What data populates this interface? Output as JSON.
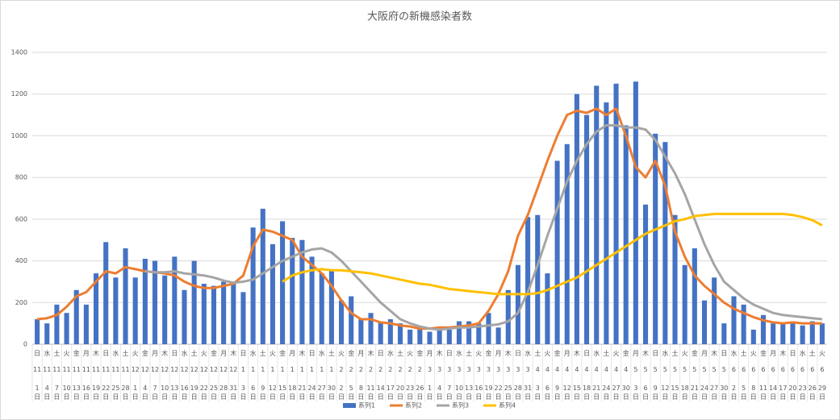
{
  "chart_data": {
    "type": "bar_line",
    "title": "大阪府の新機感染者数",
    "categories": [
      "日 11 1 日",
      "水 11 4 日",
      "土 11 7 日",
      "火 11 10 日",
      "金 11 13 日",
      "月 11 16 日",
      "木 11 19 日",
      "日 11 22 日",
      "水 11 25 日",
      "土 11 28 日",
      "火 12 1 日",
      "金 12 4 日",
      "月 12 7 日",
      "木 12 10 日",
      "日 12 13 日",
      "水 12 16 日",
      "土 12 19 日",
      "火 12 22 日",
      "金 12 25 日",
      "月 12 28 日",
      "木 12 31 日",
      "日 1 3 日",
      "水 1 6 日",
      "土 1 9 日",
      "火 1 12 日",
      "金 1 15 日",
      "月 1 18 日",
      "木 1 21 日",
      "日 1 24 日",
      "水 1 27 日",
      "土 1 30 日",
      "火 2 2 日",
      "金 2 5 日",
      "月 2 8 日",
      "木 2 11 日",
      "日 2 14 日",
      "水 2 17 日",
      "土 2 20 日",
      "火 2 23 日",
      "金 2 26 日",
      "月 3 1 日",
      "木 3 4 日",
      "日 3 7 日",
      "水 3 10 日",
      "土 3 13 日",
      "火 3 16 日",
      "金 3 19 日",
      "月 3 22 日",
      "木 3 25 日",
      "日 3 28 日",
      "水 3 31 日",
      "土 4 3 日",
      "火 4 6 日",
      "金 4 9 日",
      "月 4 12 日",
      "木 4 15 日",
      "日 4 18 日",
      "水 4 21 日",
      "土 4 24 日",
      "火 4 27 日",
      "金 4 30 日",
      "月 5 3 日",
      "木 5 6 日",
      "日 5 9 日",
      "水 5 12 日",
      "土 5 15 日",
      "火 5 18 日",
      "金 5 21 日",
      "月 5 24 日",
      "木 5 27 日",
      "日 5 30 日",
      "水 6 2 日",
      "土 6 5 日",
      "火 6 8 日",
      "金 6 11 日",
      "月 6 14 日",
      "木 6 17 日",
      "日 6 20 日",
      "水 6 23 日",
      "土 6 26 日",
      "火 6 29 日"
    ],
    "series": [
      {
        "name": "系列1",
        "kind": "bar",
        "color": "#4472c4",
        "values": [
          120,
          100,
          190,
          150,
          260,
          190,
          340,
          490,
          320,
          460,
          320,
          410,
          400,
          330,
          420,
          260,
          400,
          290,
          280,
          300,
          300,
          250,
          560,
          650,
          480,
          590,
          510,
          500,
          420,
          340,
          350,
          210,
          230,
          120,
          150,
          110,
          120,
          100,
          70,
          80,
          60,
          80,
          70,
          110,
          110,
          100,
          150,
          80,
          260,
          380,
          610,
          620,
          340,
          880,
          960,
          1200,
          1100,
          1240,
          1160,
          1250,
          1050,
          1260,
          670,
          1010,
          970,
          620,
          380,
          460,
          210,
          320,
          100,
          230,
          190,
          70,
          140,
          100,
          100,
          110,
          90,
          110,
          100
        ]
      },
      {
        "name": "系列2",
        "kind": "line",
        "color": "#ed7d31",
        "values": [
          120,
          125,
          140,
          180,
          230,
          250,
          300,
          350,
          340,
          370,
          360,
          350,
          345,
          340,
          330,
          300,
          280,
          270,
          270,
          280,
          290,
          330,
          470,
          550,
          540,
          520,
          500,
          420,
          380,
          340,
          280,
          210,
          150,
          120,
          120,
          105,
          100,
          90,
          85,
          75,
          75,
          80,
          80,
          85,
          90,
          100,
          160,
          240,
          350,
          520,
          620,
          750,
          880,
          1000,
          1100,
          1120,
          1110,
          1130,
          1100,
          1130,
          1000,
          850,
          800,
          880,
          760,
          540,
          420,
          330,
          280,
          240,
          200,
          170,
          150,
          130,
          115,
          105,
          100,
          105,
          100,
          100,
          100
        ]
      },
      {
        "name": "系列3",
        "kind": "line",
        "color": "#a5a5a5",
        "values": [
          null,
          null,
          null,
          null,
          null,
          null,
          null,
          null,
          null,
          null,
          null,
          350,
          345,
          345,
          350,
          340,
          335,
          330,
          320,
          305,
          295,
          300,
          310,
          340,
          370,
          400,
          420,
          440,
          455,
          460,
          440,
          400,
          350,
          300,
          250,
          200,
          160,
          120,
          100,
          85,
          75,
          70,
          75,
          80,
          80,
          85,
          90,
          95,
          110,
          150,
          250,
          380,
          520,
          650,
          780,
          880,
          960,
          1020,
          1050,
          1050,
          1040,
          1040,
          1030,
          980,
          900,
          820,
          720,
          600,
          480,
          380,
          300,
          260,
          220,
          190,
          170,
          150,
          140,
          135,
          130,
          125,
          120
        ]
      },
      {
        "name": "系列4",
        "kind": "line",
        "color": "#ffc000",
        "values": [
          null,
          null,
          null,
          null,
          null,
          null,
          null,
          null,
          null,
          null,
          null,
          null,
          null,
          null,
          null,
          null,
          null,
          null,
          null,
          null,
          null,
          null,
          null,
          null,
          null,
          300,
          330,
          345,
          355,
          360,
          355,
          355,
          350,
          345,
          340,
          330,
          320,
          310,
          300,
          290,
          285,
          275,
          265,
          260,
          255,
          250,
          245,
          240,
          240,
          240,
          240,
          245,
          260,
          280,
          300,
          320,
          350,
          380,
          410,
          440,
          470,
          500,
          530,
          550,
          570,
          590,
          600,
          615,
          620,
          625,
          625,
          625,
          625,
          625,
          625,
          625,
          625,
          620,
          610,
          595,
          570
        ]
      }
    ],
    "ylim": [
      0,
      1400
    ],
    "yticks": [
      0,
      200,
      400,
      600,
      800,
      1000,
      1200,
      1400
    ],
    "grid": true
  }
}
